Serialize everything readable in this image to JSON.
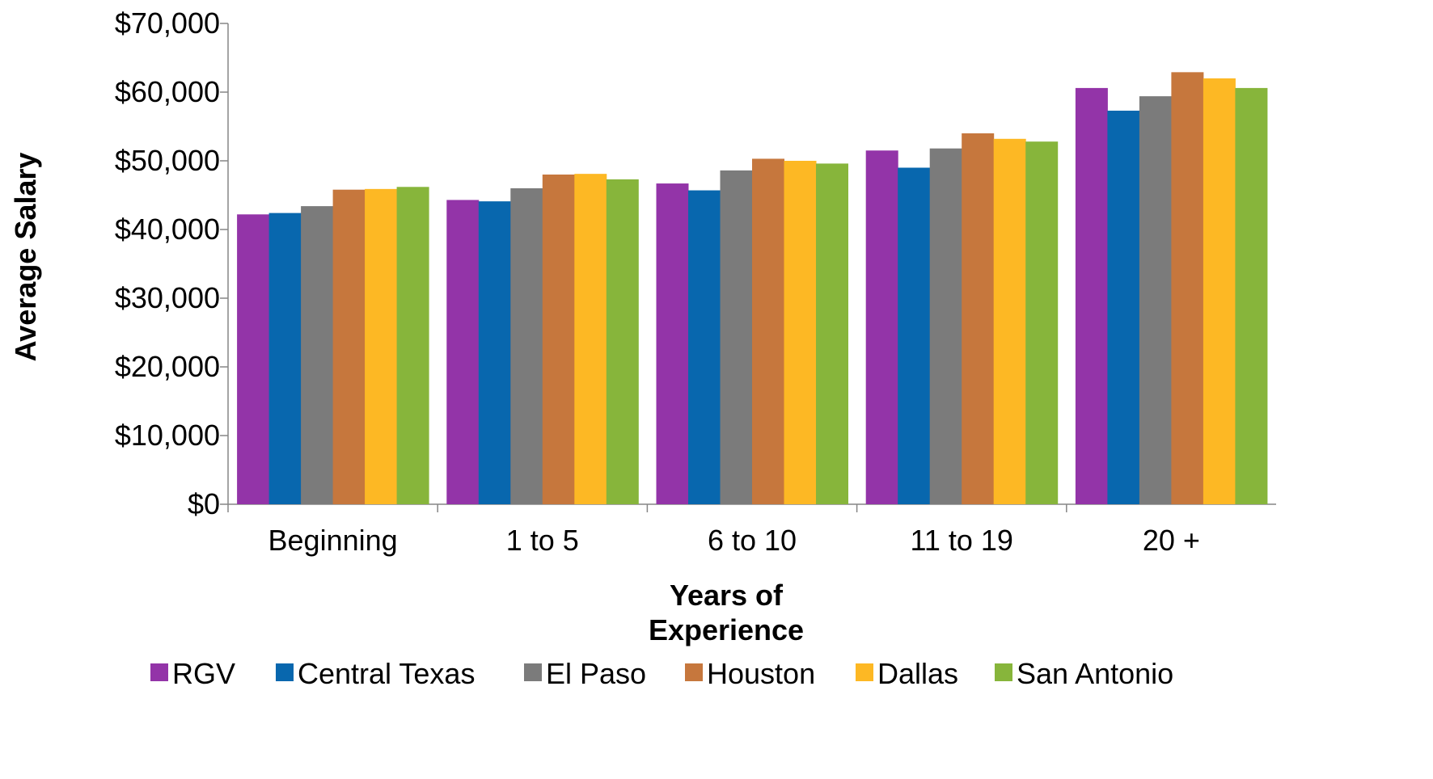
{
  "chart_data": {
    "type": "bar",
    "xlabel_lines": [
      "Years of",
      "Experience"
    ],
    "ylabel": "Average Salary",
    "categories": [
      "Beginning",
      "1 to 5",
      "6 to 10",
      "11 to 19",
      "20 +"
    ],
    "ylim": [
      0,
      70000
    ],
    "yticks": [
      0,
      10000,
      20000,
      30000,
      40000,
      50000,
      60000,
      70000
    ],
    "ytick_labels": [
      "$0",
      "$10,000",
      "$20,000",
      "$30,000",
      "$40,000",
      "$50,000",
      "$60,000",
      "$70,000"
    ],
    "grid": false,
    "legend_position": "bottom",
    "series": [
      {
        "name": "RGV",
        "color": "#9334A8",
        "values": [
          42200,
          44300,
          46700,
          51500,
          60600
        ]
      },
      {
        "name": "Central Texas",
        "color": "#0867AE",
        "values": [
          42400,
          44100,
          45700,
          49000,
          57300
        ]
      },
      {
        "name": "El Paso",
        "color": "#7B7B7B",
        "values": [
          43400,
          46000,
          48600,
          51800,
          59400
        ]
      },
      {
        "name": "Houston",
        "color": "#C6773D",
        "values": [
          45800,
          48000,
          50300,
          54000,
          62900
        ]
      },
      {
        "name": "Dallas",
        "color": "#FDB824",
        "values": [
          45900,
          48100,
          50000,
          53200,
          62000
        ]
      },
      {
        "name": "San Antonio",
        "color": "#87B53B",
        "values": [
          46200,
          47300,
          49600,
          52800,
          60600
        ]
      }
    ]
  }
}
